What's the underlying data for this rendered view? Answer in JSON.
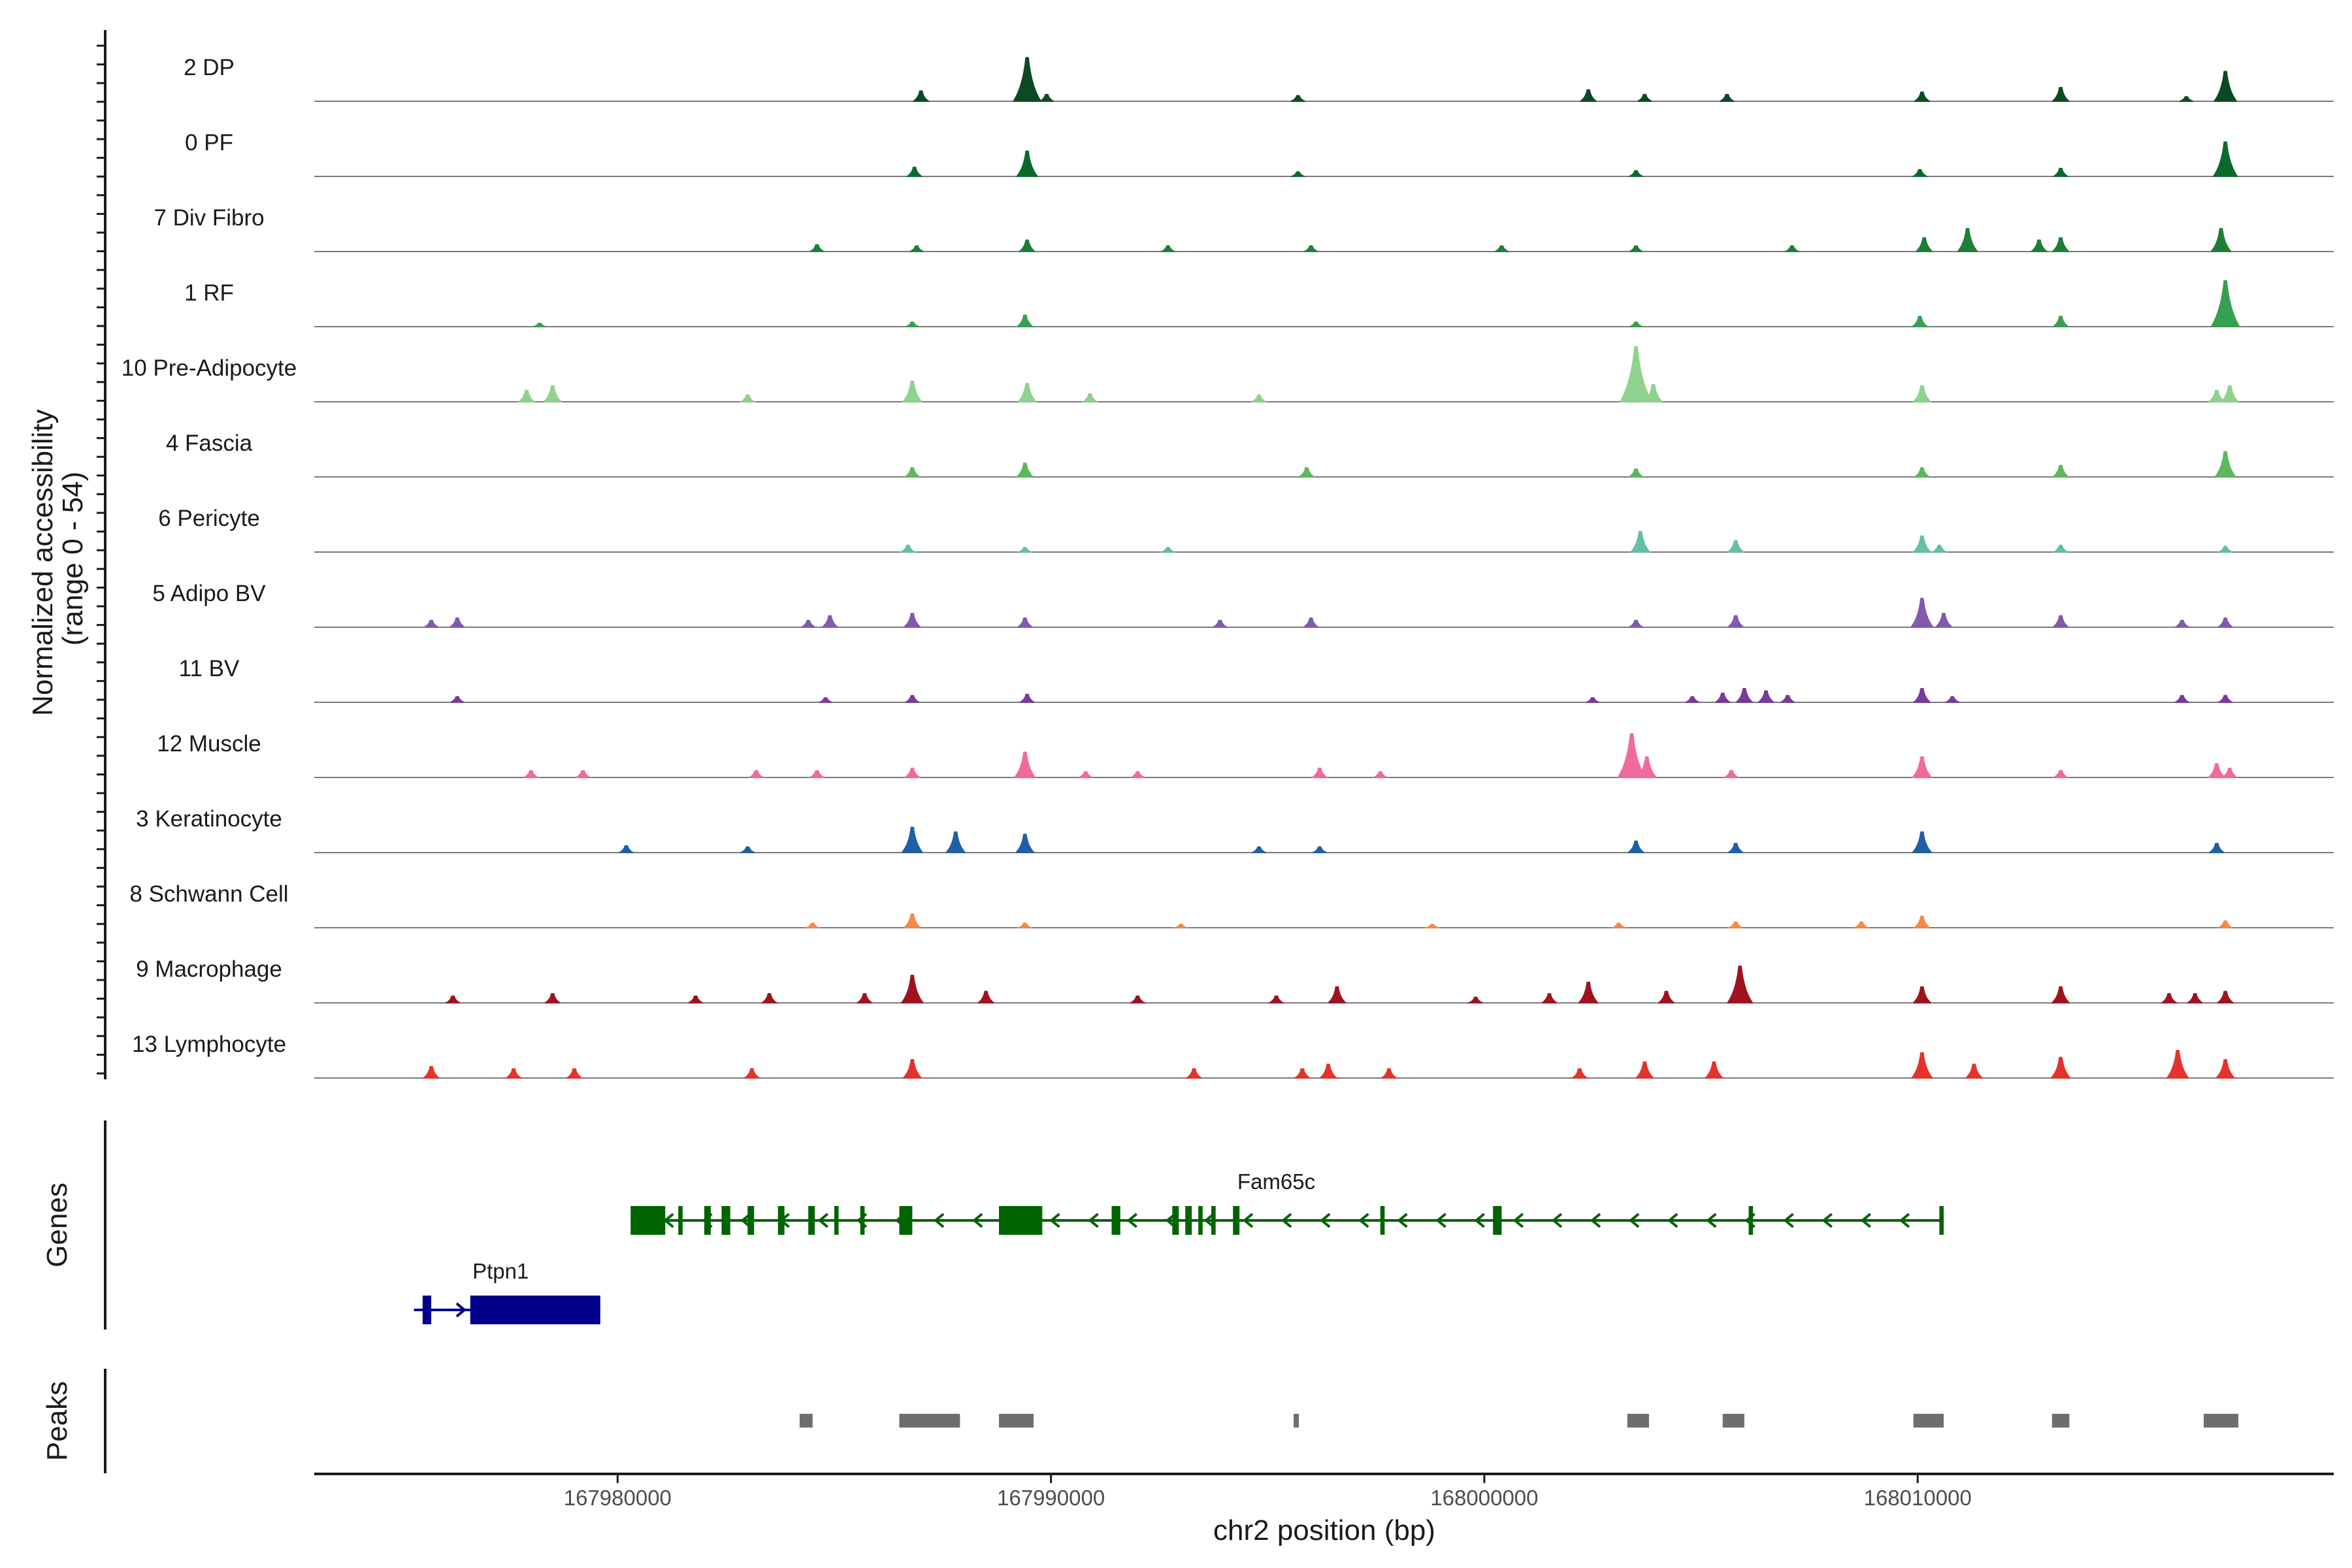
{
  "chart_data": {
    "type": "area",
    "chromosome": "chr2",
    "xlim": [
      167973000,
      168019600
    ],
    "xticks": [
      167980000,
      167990000,
      168000000,
      168010000
    ],
    "xtick_labels": [
      "167980000",
      "167990000",
      "168000000",
      "168010000"
    ],
    "xlabel": "chr2 position (bp)",
    "ylabel_line1": "Normalized accessibility",
    "ylabel_line2": "(range 0 - 54)",
    "ylim": [
      0,
      54
    ],
    "genes_panel_label": "Genes",
    "peaks_panel_label": "Peaks",
    "tracks": [
      {
        "name": "2 DP",
        "color": "#0b4a22",
        "peaks": [
          [
            167987000,
            9
          ],
          [
            167989450,
            38
          ],
          [
            167989900,
            6
          ],
          [
            167995700,
            5
          ],
          [
            168002400,
            10
          ],
          [
            168003700,
            6
          ],
          [
            168005600,
            6
          ],
          [
            168010100,
            8
          ],
          [
            168013300,
            12
          ],
          [
            168016200,
            4
          ],
          [
            168017100,
            26
          ]
        ]
      },
      {
        "name": "0 PF",
        "color": "#0a6a2c",
        "peaks": [
          [
            167986850,
            8
          ],
          [
            167989450,
            22
          ],
          [
            167995700,
            4
          ],
          [
            168003500,
            5
          ],
          [
            168010050,
            6
          ],
          [
            168013300,
            7
          ],
          [
            168017100,
            30
          ]
        ]
      },
      {
        "name": "7 Div Fibro",
        "color": "#1e7e38",
        "peaks": [
          [
            167984600,
            6
          ],
          [
            167986900,
            5
          ],
          [
            167989450,
            10
          ],
          [
            167992700,
            5
          ],
          [
            167996000,
            5
          ],
          [
            168000400,
            5
          ],
          [
            168003500,
            5
          ],
          [
            168007100,
            5
          ],
          [
            168010150,
            12
          ],
          [
            168011150,
            20
          ],
          [
            168012800,
            10
          ],
          [
            168013300,
            12
          ],
          [
            168017000,
            20
          ]
        ]
      },
      {
        "name": "1 RF",
        "color": "#37a04e",
        "peaks": [
          [
            167978200,
            3
          ],
          [
            167986800,
            4
          ],
          [
            167989400,
            10
          ],
          [
            168003500,
            4
          ],
          [
            168010050,
            9
          ],
          [
            168013300,
            9
          ],
          [
            168017100,
            40
          ]
        ]
      },
      {
        "name": "10 Pre-Adipocyte",
        "color": "#8fd28f",
        "peaks": [
          [
            167977900,
            10
          ],
          [
            167978500,
            14
          ],
          [
            167983000,
            6
          ],
          [
            167986800,
            18
          ],
          [
            167989450,
            16
          ],
          [
            167990900,
            7
          ],
          [
            167994800,
            6
          ],
          [
            168003500,
            48
          ],
          [
            168003900,
            15
          ],
          [
            168010100,
            14
          ],
          [
            168016900,
            10
          ],
          [
            168017200,
            14
          ]
        ]
      },
      {
        "name": "4 Fascia",
        "color": "#5cb85c",
        "peaks": [
          [
            167986800,
            8
          ],
          [
            167989400,
            12
          ],
          [
            167995900,
            8
          ],
          [
            168003500,
            7
          ],
          [
            168010100,
            8
          ],
          [
            168013300,
            10
          ],
          [
            168017100,
            22
          ]
        ]
      },
      {
        "name": "6 Pericyte",
        "color": "#63c0a6",
        "peaks": [
          [
            167986700,
            6
          ],
          [
            167989400,
            4
          ],
          [
            167992700,
            4
          ],
          [
            168003600,
            18
          ],
          [
            168005800,
            10
          ],
          [
            168010100,
            14
          ],
          [
            168010500,
            6
          ],
          [
            168013300,
            6
          ],
          [
            168017100,
            5
          ]
        ]
      },
      {
        "name": "5 Adipo BV",
        "color": "#8159ad",
        "peaks": [
          [
            167975700,
            6
          ],
          [
            167976300,
            8
          ],
          [
            167984400,
            6
          ],
          [
            167984900,
            10
          ],
          [
            167986800,
            12
          ],
          [
            167989400,
            8
          ],
          [
            167993900,
            6
          ],
          [
            167996000,
            8
          ],
          [
            168003500,
            6
          ],
          [
            168005800,
            10
          ],
          [
            168010100,
            25
          ],
          [
            168010600,
            12
          ],
          [
            168013300,
            10
          ],
          [
            168016100,
            6
          ],
          [
            168017100,
            8
          ]
        ]
      },
      {
        "name": "11 BV",
        "color": "#7a3a9a",
        "peaks": [
          [
            167976300,
            5
          ],
          [
            167984800,
            4
          ],
          [
            167986800,
            6
          ],
          [
            167989450,
            7
          ],
          [
            168002500,
            4
          ],
          [
            168004800,
            5
          ],
          [
            168005500,
            8
          ],
          [
            168006000,
            12
          ],
          [
            168006500,
            10
          ],
          [
            168007000,
            6
          ],
          [
            168010100,
            12
          ],
          [
            168010800,
            5
          ],
          [
            168016100,
            6
          ],
          [
            168017100,
            6
          ]
        ]
      },
      {
        "name": "12 Muscle",
        "color": "#f06a9e",
        "peaks": [
          [
            167978000,
            6
          ],
          [
            167979200,
            6
          ],
          [
            167983200,
            6
          ],
          [
            167984600,
            6
          ],
          [
            167986800,
            8
          ],
          [
            167989400,
            22
          ],
          [
            167990800,
            5
          ],
          [
            167992000,
            5
          ],
          [
            167996200,
            8
          ],
          [
            167997600,
            5
          ],
          [
            168003400,
            38
          ],
          [
            168003750,
            18
          ],
          [
            168005700,
            6
          ],
          [
            168010100,
            18
          ],
          [
            168013300,
            6
          ],
          [
            168016900,
            12
          ],
          [
            168017200,
            8
          ]
        ]
      },
      {
        "name": "3 Keratinocyte",
        "color": "#1f5fa6",
        "peaks": [
          [
            167980200,
            6
          ],
          [
            167983000,
            5
          ],
          [
            167986800,
            22
          ],
          [
            167987800,
            18
          ],
          [
            167989400,
            16
          ],
          [
            167994800,
            5
          ],
          [
            167996200,
            5
          ],
          [
            168003500,
            10
          ],
          [
            168005800,
            8
          ],
          [
            168010100,
            18
          ],
          [
            168016900,
            8
          ]
        ]
      },
      {
        "name": "8 Schwann Cell",
        "color": "#f28a4a",
        "peaks": [
          [
            167984500,
            4
          ],
          [
            167986800,
            12
          ],
          [
            167989400,
            4
          ],
          [
            167993000,
            3
          ],
          [
            167998800,
            3
          ],
          [
            168003100,
            4
          ],
          [
            168005800,
            5
          ],
          [
            168008700,
            5
          ],
          [
            168010100,
            10
          ],
          [
            168017100,
            6
          ]
        ]
      },
      {
        "name": "9 Macrophage",
        "color": "#a0121f",
        "peaks": [
          [
            167976200,
            6
          ],
          [
            167978500,
            8
          ],
          [
            167981800,
            6
          ],
          [
            167983500,
            8
          ],
          [
            167985700,
            8
          ],
          [
            167986800,
            24
          ],
          [
            167988500,
            10
          ],
          [
            167992000,
            6
          ],
          [
            167995200,
            6
          ],
          [
            167996600,
            14
          ],
          [
            167999800,
            5
          ],
          [
            168001500,
            8
          ],
          [
            168002400,
            18
          ],
          [
            168004200,
            10
          ],
          [
            168005900,
            32
          ],
          [
            168010100,
            14
          ],
          [
            168013300,
            14
          ],
          [
            168015800,
            8
          ],
          [
            168016400,
            8
          ],
          [
            168017100,
            10
          ]
        ]
      },
      {
        "name": "13 Lymphocyte",
        "color": "#e4332b",
        "peaks": [
          [
            167975700,
            10
          ],
          [
            167977600,
            8
          ],
          [
            167979000,
            8
          ],
          [
            167983100,
            8
          ],
          [
            167986800,
            16
          ],
          [
            167993300,
            8
          ],
          [
            167995800,
            8
          ],
          [
            167996400,
            12
          ],
          [
            167997800,
            8
          ],
          [
            168002200,
            8
          ],
          [
            168003700,
            14
          ],
          [
            168005300,
            14
          ],
          [
            168010100,
            22
          ],
          [
            168011300,
            12
          ],
          [
            168013300,
            18
          ],
          [
            168016000,
            24
          ],
          [
            168017100,
            16
          ]
        ]
      }
    ],
    "genes": [
      {
        "name": "Fam65c",
        "start": 167980300,
        "end": 168010600,
        "strand": "-",
        "color": "#006400",
        "row": 0,
        "exons": [
          [
            167980300,
            167981100
          ],
          [
            167981400,
            167981500
          ],
          [
            167982000,
            167982150
          ],
          [
            167982400,
            167982600
          ],
          [
            167983000,
            167983150
          ],
          [
            167983700,
            167983850
          ],
          [
            167984400,
            167984550
          ],
          [
            167985000,
            167985100
          ],
          [
            167985600,
            167985700
          ],
          [
            167986500,
            167986800
          ],
          [
            167988800,
            167989800
          ],
          [
            167991400,
            167991600
          ],
          [
            167992800,
            167992950
          ],
          [
            167993100,
            167993250
          ],
          [
            167993400,
            167993500
          ],
          [
            167993700,
            167993800
          ],
          [
            167994200,
            167994350
          ],
          [
            167997600,
            167997700
          ],
          [
            168000200,
            168000400
          ],
          [
            168006100,
            168006200
          ],
          [
            168010500,
            168010600
          ]
        ]
      },
      {
        "name": "Ptpn1",
        "start": 167975300,
        "end": 167979600,
        "strand": "+",
        "color": "#00008b",
        "row": 1,
        "exons": [
          [
            167975500,
            167975700
          ],
          [
            167976600,
            167979600
          ]
        ]
      }
    ],
    "peaks": [
      [
        167984200,
        167984500
      ],
      [
        167986500,
        167987900
      ],
      [
        167988800,
        167989600
      ],
      [
        167995600,
        167995700
      ],
      [
        168003300,
        168003800
      ],
      [
        168005500,
        168006000
      ],
      [
        168009900,
        168010600
      ],
      [
        168013100,
        168013500
      ],
      [
        168016600,
        168017400
      ]
    ]
  }
}
